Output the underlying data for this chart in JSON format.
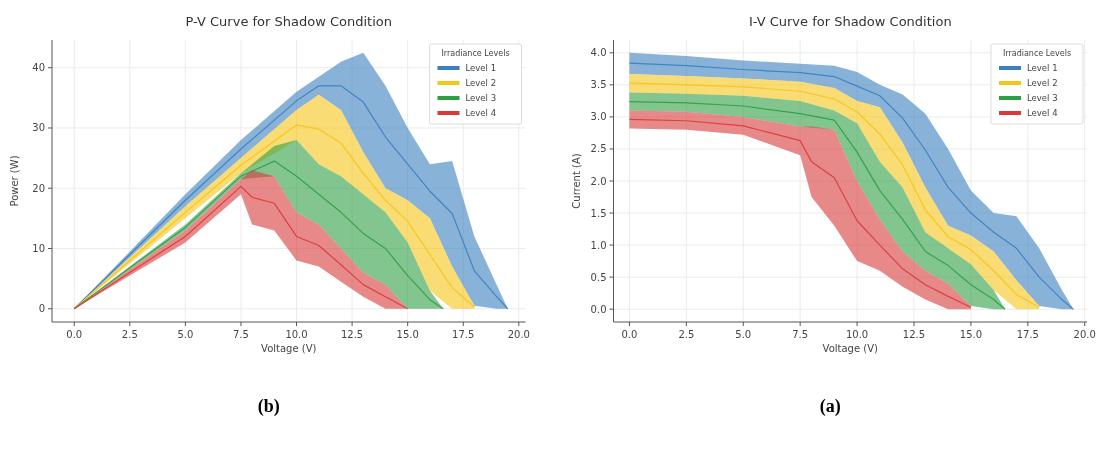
{
  "chart_data": [
    {
      "type": "line",
      "title": "P-V Curve for Shadow Condition",
      "xlabel": "Voltage (V)",
      "ylabel": "Power (W)",
      "legend_title": "Irradiance Levels",
      "legend": "top right",
      "grid": true,
      "xlim": [
        -1,
        20.3
      ],
      "ylim": [
        -2.2,
        44.6
      ],
      "xticks": [
        {
          "value": 0,
          "label": "0.0"
        },
        {
          "value": 2.5,
          "label": "2.5"
        },
        {
          "value": 5,
          "label": "5.0"
        },
        {
          "value": 7.5,
          "label": "7.5"
        },
        {
          "value": 10,
          "label": "10.0"
        },
        {
          "value": 12.5,
          "label": "12.5"
        },
        {
          "value": 15,
          "label": "15.0"
        },
        {
          "value": 17.5,
          "label": "17.5"
        },
        {
          "value": 20,
          "label": "20.0"
        }
      ],
      "yticks": [
        0,
        10,
        20,
        30,
        40
      ],
      "series": [
        {
          "name": "Level 1",
          "color": "#3a7fc0",
          "x": [
            0,
            2.5,
            5,
            7.5,
            10,
            11,
            12,
            13,
            14,
            15,
            16,
            17,
            18,
            19,
            19.5
          ],
          "values": [
            0,
            9,
            18,
            26.5,
            34.5,
            37,
            37,
            34.3,
            28.5,
            24,
            19.5,
            15.8,
            6.3,
            2,
            0
          ],
          "lower": [
            0,
            8.5,
            17,
            25,
            33,
            35.5,
            33,
            26,
            20,
            18,
            15,
            7,
            0.5,
            0,
            0
          ],
          "upper": [
            0,
            9.5,
            19,
            28,
            36,
            38.5,
            41,
            42.5,
            37,
            30,
            24,
            24.5,
            12,
            4,
            0
          ]
        },
        {
          "name": "Level 2",
          "color": "#f5c518",
          "x": [
            0,
            2.5,
            5,
            7.5,
            10,
            11,
            12,
            13,
            14,
            15,
            16,
            17,
            18
          ],
          "values": [
            0,
            8,
            16,
            23.8,
            30.5,
            29.8,
            27.5,
            22.5,
            18,
            14.5,
            9,
            3.5,
            0.3
          ],
          "lower": [
            0,
            7.5,
            15,
            22.5,
            28,
            24,
            22,
            19,
            16,
            11,
            3,
            0,
            0
          ],
          "upper": [
            0,
            8.5,
            17,
            25,
            33,
            35.5,
            33,
            26,
            20,
            18,
            15,
            7,
            0.5
          ]
        },
        {
          "name": "Level 3",
          "color": "#2e9e45",
          "x": [
            0,
            2.5,
            5,
            7.5,
            9,
            10,
            11,
            12,
            13,
            14,
            15,
            16,
            16.6
          ],
          "values": [
            0,
            6.8,
            13.5,
            22,
            24.5,
            22,
            19,
            16,
            12.5,
            10,
            5.5,
            1.5,
            0
          ],
          "lower": [
            0,
            6.5,
            13,
            21.5,
            22,
            16,
            14,
            10,
            6,
            4,
            0,
            0,
            0
          ],
          "upper": [
            0,
            7,
            14,
            22.5,
            27,
            28,
            24,
            22,
            19,
            16,
            11,
            3,
            0
          ]
        },
        {
          "name": "Level 4",
          "color": "#d83a3a",
          "x": [
            0,
            2.5,
            5,
            7.5,
            8,
            9,
            10,
            11,
            12,
            13,
            14,
            15
          ],
          "values": [
            0,
            6,
            12,
            20.3,
            18.5,
            17.5,
            12,
            10.5,
            7.3,
            4,
            2,
            0
          ],
          "lower": [
            0,
            5.5,
            11,
            19,
            14,
            13,
            8,
            7,
            4.5,
            2,
            0,
            0
          ],
          "upper": [
            0,
            6.5,
            13,
            21.5,
            23,
            22,
            16,
            14,
            10,
            6,
            4,
            0
          ]
        }
      ],
      "annotations": [
        "(b)"
      ]
    },
    {
      "type": "line",
      "title": "I-V Curve for Shadow Condition",
      "xlabel": "Voltage (V)",
      "ylabel": "Current (A)",
      "legend_title": "Irradiance Levels",
      "legend": "top right",
      "grid": true,
      "xlim": [
        -0.7,
        20.1
      ],
      "ylim": [
        -0.2,
        4.2
      ],
      "xticks": [
        {
          "value": 0,
          "label": "0.0"
        },
        {
          "value": 2.5,
          "label": "2.5"
        },
        {
          "value": 5,
          "label": "5.0"
        },
        {
          "value": 7.5,
          "label": "7.5"
        },
        {
          "value": 10,
          "label": "10.0"
        },
        {
          "value": 12.5,
          "label": "12.5"
        },
        {
          "value": 15,
          "label": "15.0"
        },
        {
          "value": 17.5,
          "label": "17.5"
        },
        {
          "value": 20,
          "label": "20.0"
        }
      ],
      "yticks": [
        {
          "value": 0,
          "label": "0.0"
        },
        {
          "value": 0.5,
          "label": "0.5"
        },
        {
          "value": 1,
          "label": "1.0"
        },
        {
          "value": 1.5,
          "label": "1.5"
        },
        {
          "value": 2,
          "label": "2.0"
        },
        {
          "value": 2.5,
          "label": "2.5"
        },
        {
          "value": 3,
          "label": "3.0"
        },
        {
          "value": 3.5,
          "label": "3.5"
        },
        {
          "value": 4,
          "label": "4.0"
        }
      ],
      "series": [
        {
          "name": "Level 1",
          "color": "#3a7fc0",
          "x": [
            0,
            2.5,
            5,
            7.5,
            9,
            10,
            11,
            12,
            13,
            14,
            15,
            16,
            17,
            18,
            19,
            19.5
          ],
          "values": [
            3.84,
            3.8,
            3.74,
            3.69,
            3.63,
            3.48,
            3.33,
            2.98,
            2.48,
            1.9,
            1.5,
            1.2,
            0.95,
            0.5,
            0.15,
            0
          ],
          "lower": [
            3.67,
            3.64,
            3.6,
            3.55,
            3.45,
            3.25,
            3.15,
            2.6,
            1.9,
            1.3,
            1.15,
            0.9,
            0.45,
            0.05,
            0,
            0
          ],
          "upper": [
            4,
            3.95,
            3.88,
            3.83,
            3.8,
            3.7,
            3.5,
            3.35,
            3.05,
            2.5,
            1.85,
            1.5,
            1.45,
            0.95,
            0.3,
            0
          ]
        },
        {
          "name": "Level 2",
          "color": "#f5c518",
          "x": [
            0,
            2.5,
            5,
            7.5,
            9,
            10,
            11,
            12,
            13,
            14,
            15,
            16,
            17,
            18
          ],
          "values": [
            3.53,
            3.5,
            3.47,
            3.4,
            3.28,
            3.08,
            2.73,
            2.25,
            1.55,
            1.13,
            0.93,
            0.6,
            0.23,
            0.03
          ],
          "lower": [
            3.38,
            3.36,
            3.33,
            3.25,
            3.1,
            2.9,
            2.3,
            1.9,
            1.2,
            0.95,
            0.7,
            0.3,
            0,
            0
          ],
          "upper": [
            3.67,
            3.64,
            3.6,
            3.55,
            3.45,
            3.25,
            3.15,
            2.6,
            1.9,
            1.3,
            1.15,
            0.9,
            0.45,
            0.05
          ]
        },
        {
          "name": "Level 3",
          "color": "#2e9e45",
          "x": [
            0,
            2.5,
            5,
            7.5,
            9,
            10,
            11,
            12,
            13,
            14,
            15,
            16,
            16.5
          ],
          "values": [
            3.24,
            3.22,
            3.17,
            3.05,
            2.95,
            2.45,
            1.85,
            1.4,
            0.9,
            0.68,
            0.38,
            0.15,
            0
          ],
          "lower": [
            3.1,
            3.08,
            3,
            2.85,
            2.8,
            2,
            1.4,
            0.9,
            0.6,
            0.4,
            0.05,
            0,
            0
          ],
          "upper": [
            3.38,
            3.36,
            3.33,
            3.25,
            3.1,
            2.9,
            2.3,
            1.9,
            1.2,
            0.95,
            0.7,
            0.3,
            0
          ]
        },
        {
          "name": "Level 4",
          "color": "#d83a3a",
          "x": [
            0,
            2.5,
            5,
            7.5,
            8,
            9,
            10,
            11,
            12,
            13,
            14,
            15
          ],
          "values": [
            2.96,
            2.94,
            2.86,
            2.63,
            2.3,
            2.05,
            1.38,
            1,
            0.63,
            0.38,
            0.2,
            0.03
          ],
          "lower": [
            2.82,
            2.8,
            2.72,
            2.4,
            1.75,
            1.3,
            0.75,
            0.6,
            0.35,
            0.15,
            0,
            0
          ],
          "upper": [
            3.1,
            3.08,
            3,
            2.85,
            2.85,
            2.8,
            2,
            1.4,
            0.9,
            0.6,
            0.4,
            0.05
          ]
        }
      ],
      "annotations": [
        "(a)"
      ]
    }
  ]
}
